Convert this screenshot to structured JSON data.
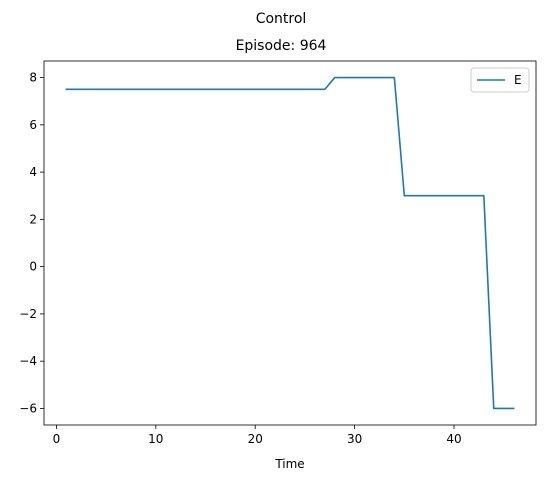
{
  "figure": {
    "suptitle": "Control"
  },
  "chart_data": {
    "type": "line",
    "title": "Episode: 964",
    "xlabel": "Time",
    "ylabel": "",
    "xlim": [
      -1.25,
      48.25
    ],
    "ylim": [
      -6.7,
      8.7
    ],
    "xticks": [
      0,
      10,
      20,
      30,
      40
    ],
    "xtick_labels": [
      "0",
      "10",
      "20",
      "30",
      "40"
    ],
    "yticks": [
      -6,
      -4,
      -2,
      0,
      2,
      4,
      6,
      8
    ],
    "ytick_labels": [
      "−6",
      "−4",
      "−2",
      "0",
      "2",
      "4",
      "6",
      "8"
    ],
    "grid": false,
    "legend_position": "top-right",
    "series": [
      {
        "name": "E",
        "color": "#1f77b4",
        "x": [
          1,
          2,
          3,
          4,
          5,
          6,
          7,
          8,
          9,
          10,
          11,
          12,
          13,
          14,
          15,
          16,
          17,
          18,
          19,
          20,
          21,
          22,
          23,
          24,
          25,
          26,
          27,
          28,
          29,
          30,
          31,
          32,
          33,
          34,
          35,
          36,
          37,
          38,
          39,
          40,
          41,
          42,
          43,
          44,
          45,
          46
        ],
        "y": [
          7.5,
          7.5,
          7.5,
          7.5,
          7.5,
          7.5,
          7.5,
          7.5,
          7.5,
          7.5,
          7.5,
          7.5,
          7.5,
          7.5,
          7.5,
          7.5,
          7.5,
          7.5,
          7.5,
          7.5,
          7.5,
          7.5,
          7.5,
          7.5,
          7.5,
          7.5,
          7.5,
          8,
          8,
          8,
          8,
          8,
          8,
          8,
          3,
          3,
          3,
          3,
          3,
          3,
          3,
          3,
          3,
          -6,
          -6,
          -6
        ]
      }
    ]
  }
}
